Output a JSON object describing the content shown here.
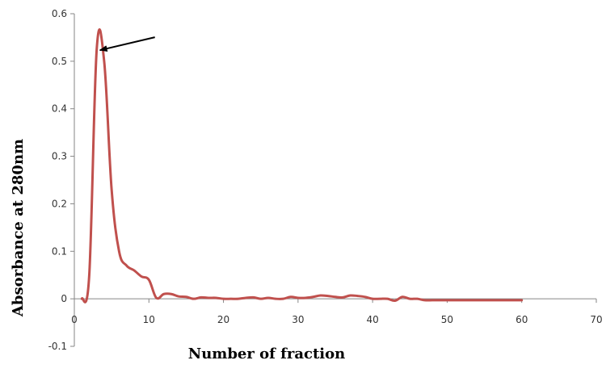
{
  "chart_data": {
    "type": "line",
    "title": "",
    "xlabel": "Number of fraction",
    "ylabel": "Absorbance   at 280nm",
    "xlim": [
      0,
      70
    ],
    "ylim": [
      -0.1,
      0.6
    ],
    "x_ticks": [
      0,
      10,
      20,
      30,
      40,
      50,
      60,
      70
    ],
    "y_ticks": [
      -0.1,
      0,
      0.1,
      0.2,
      0.3,
      0.4,
      0.5,
      0.6
    ],
    "x_tick_labels": [
      "0",
      "10",
      "20",
      "30",
      "40",
      "50",
      "60",
      "70"
    ],
    "y_tick_labels": [
      "-0.1",
      "0",
      "0.1",
      "0.2",
      "0.3",
      "0.4",
      "0.5",
      "0.6"
    ],
    "grid": false,
    "legend": "none",
    "series": [
      {
        "color": "#c0504d",
        "x": [
          1,
          2,
          3,
          4,
          5,
          6,
          7,
          8,
          9,
          10,
          11,
          12,
          13,
          14,
          15,
          16,
          17,
          18,
          19,
          20,
          21,
          22,
          23,
          24,
          25,
          26,
          27,
          28,
          29,
          30,
          31,
          32,
          33,
          34,
          35,
          36,
          37,
          38,
          39,
          40,
          41,
          42,
          43,
          44,
          45,
          46,
          47,
          48,
          49,
          50,
          51,
          52,
          53,
          54,
          55,
          56,
          57,
          58,
          59,
          60
        ],
        "values": [
          0,
          0.05,
          0.525,
          0.5,
          0.23,
          0.1,
          0.07,
          0.06,
          0.047,
          0.04,
          0.002,
          0.01,
          0.01,
          0.005,
          0.004,
          0,
          0.003,
          0.002,
          0.002,
          0,
          0,
          0,
          0.002,
          0.003,
          0,
          0.002,
          0,
          0,
          0.004,
          0.002,
          0.002,
          0.004,
          0.007,
          0.006,
          0.004,
          0.003,
          0.007,
          0.006,
          0.004,
          0,
          0,
          0,
          -0.004,
          0.004,
          0,
          0,
          -0.003,
          -0.003,
          -0.003,
          -0.003,
          -0.003,
          -0.003,
          -0.003,
          -0.003,
          -0.003,
          -0.003,
          -0.003,
          -0.003,
          -0.003,
          -0.003
        ]
      }
    ],
    "annotations": [
      {
        "type": "arrow",
        "points_to": {
          "x": 3,
          "y": 0.525
        }
      }
    ]
  }
}
